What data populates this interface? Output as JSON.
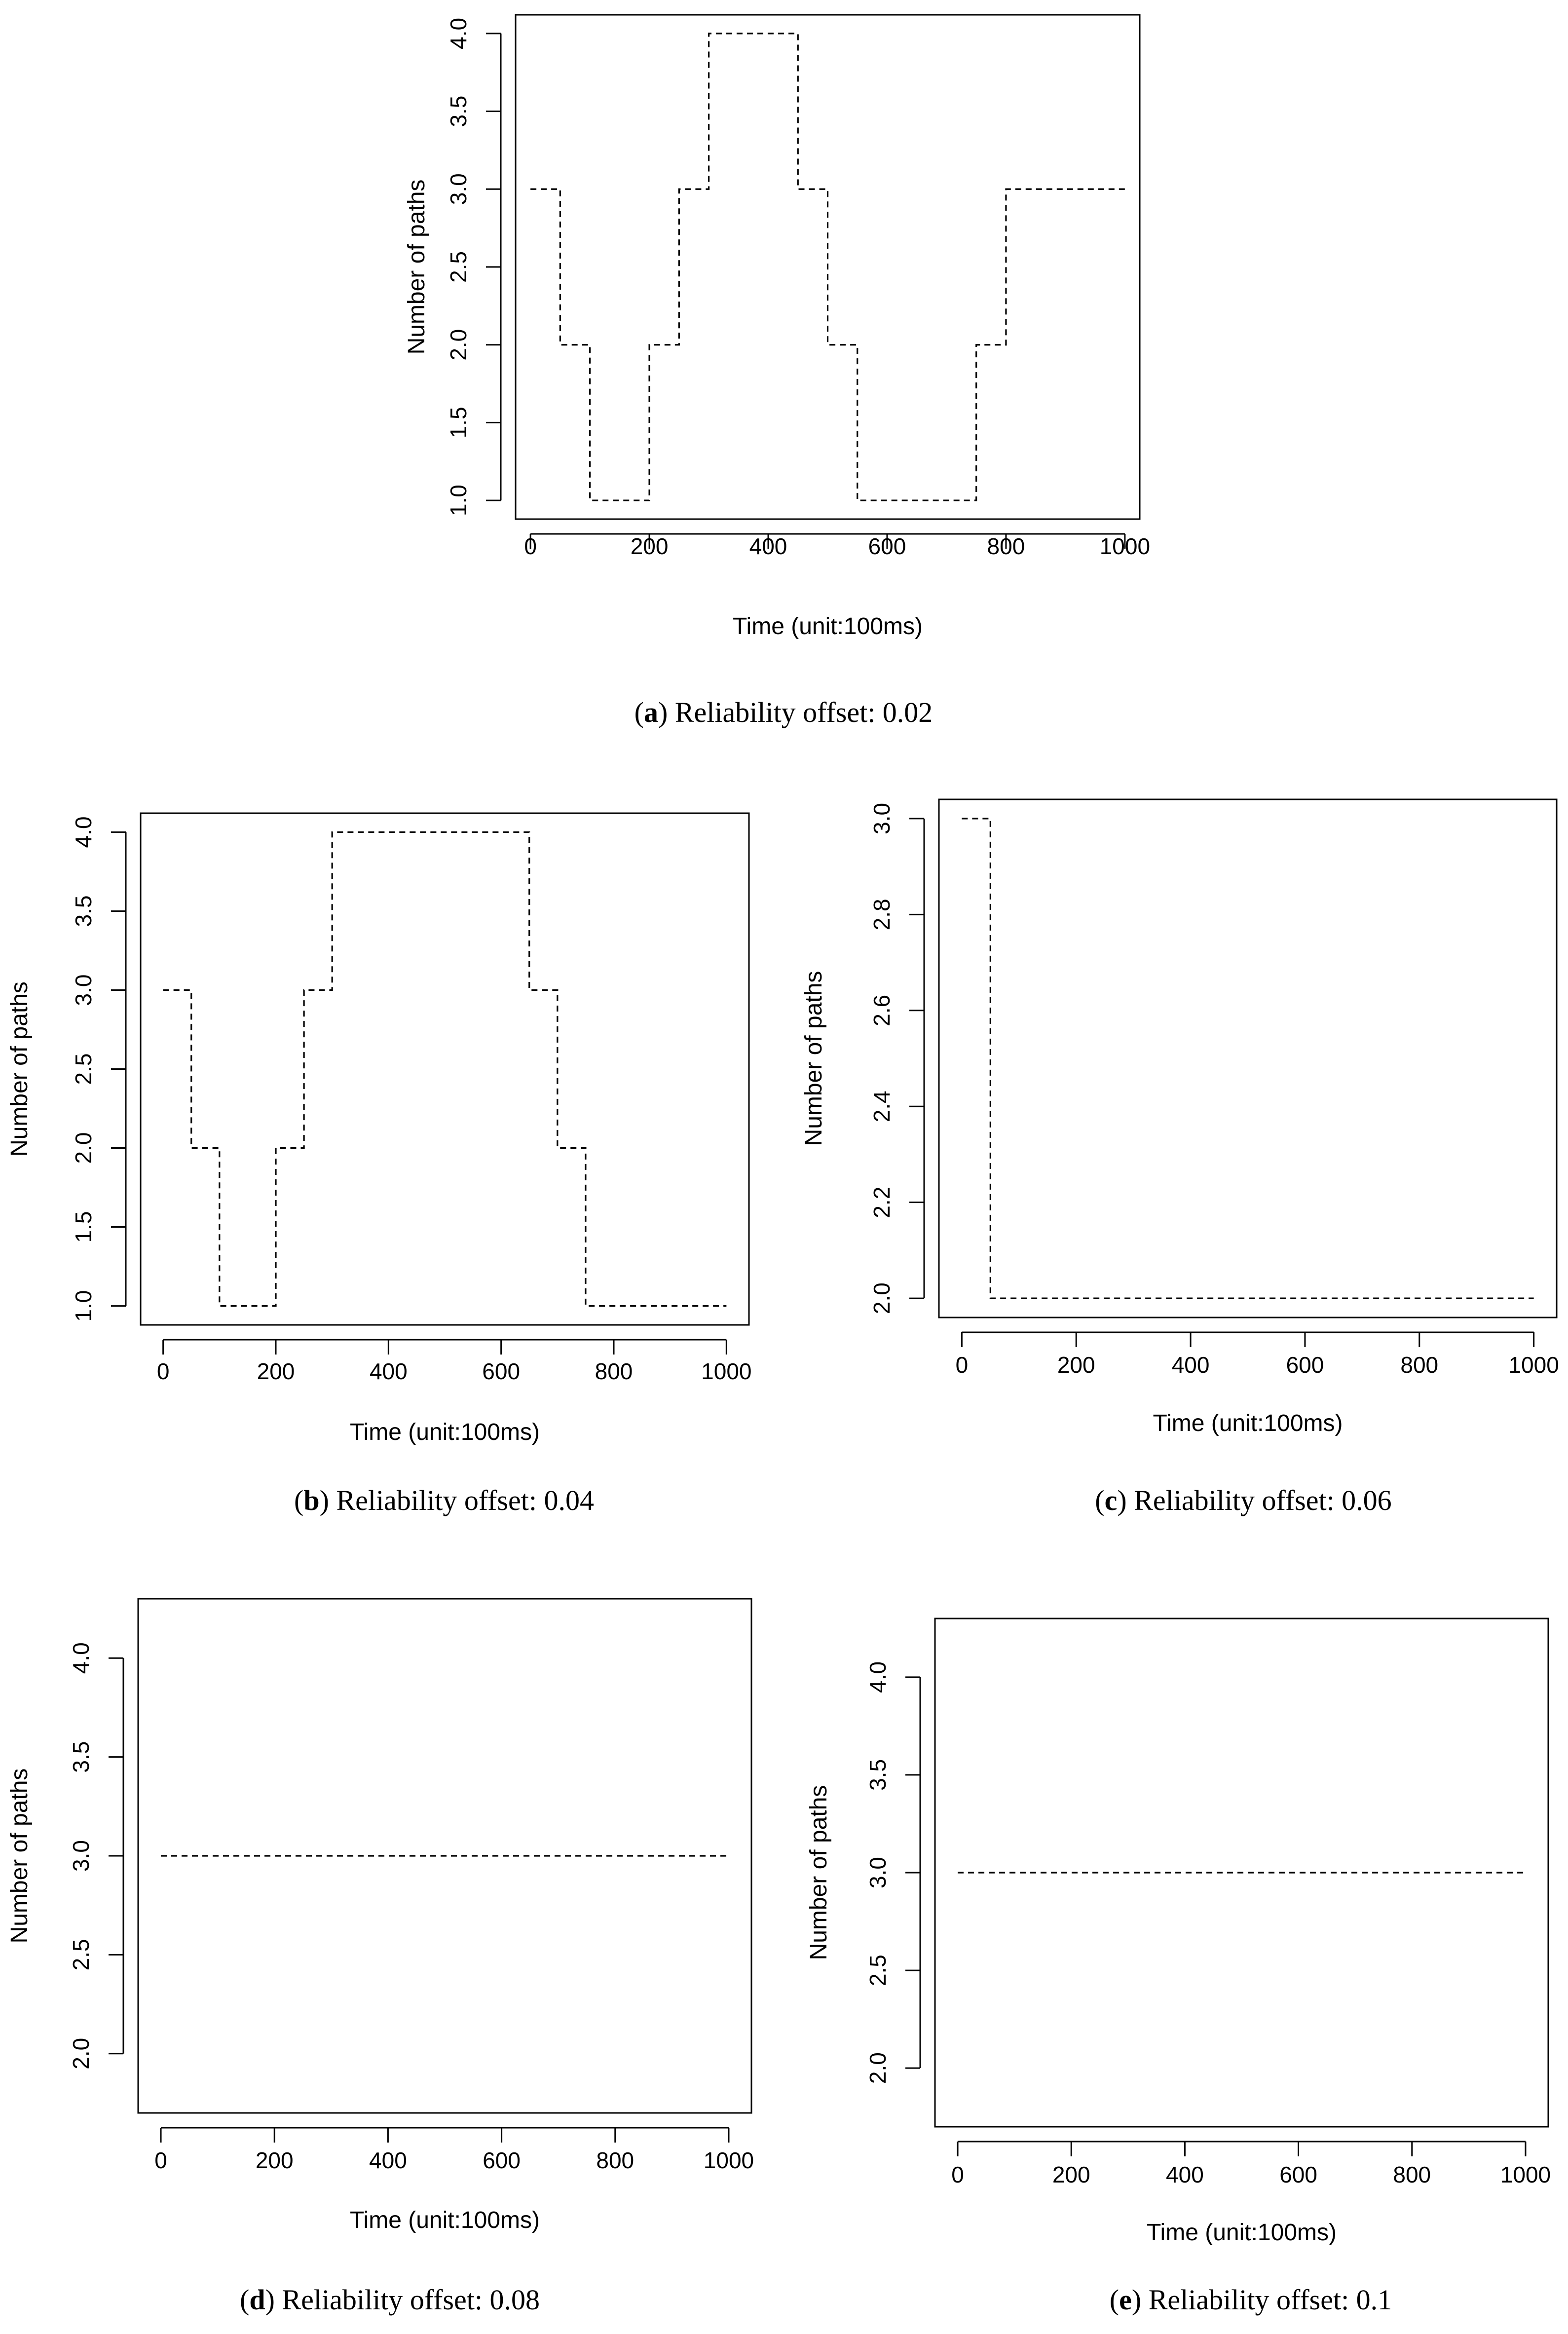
{
  "chart_data": [
    {
      "id": "a",
      "type": "line",
      "line_style": "dashed-step",
      "caption_letter": "a",
      "caption_text": "Reliability offset: 0.02",
      "xlabel": "Time (unit:100ms)",
      "ylabel": "Number of paths",
      "xlim": [
        -25,
        1025
      ],
      "ylim": [
        0.88,
        4.12
      ],
      "xticks": [
        0,
        200,
        400,
        600,
        800,
        1000
      ],
      "yticks": [
        "1.0",
        "1.5",
        "2.0",
        "2.5",
        "3.0",
        "3.5",
        "4.0"
      ],
      "x": [
        0,
        50,
        100,
        150,
        200,
        250,
        300,
        350,
        400,
        450,
        500,
        550,
        600,
        650,
        700,
        750,
        800,
        850,
        900,
        950,
        1000
      ],
      "y": [
        3,
        2,
        1,
        1,
        2,
        3,
        4,
        4,
        4,
        3,
        2,
        1,
        1,
        1,
        1,
        2,
        3,
        3,
        3,
        3,
        3
      ]
    },
    {
      "id": "b",
      "type": "line",
      "line_style": "dashed-step",
      "caption_letter": "b",
      "caption_text": "Reliability offset: 0.04",
      "xlabel": "Time (unit:100ms)",
      "ylabel": "Number of paths",
      "xlim": [
        -40,
        1040
      ],
      "ylim": [
        0.88,
        4.12
      ],
      "xticks": [
        0,
        200,
        400,
        600,
        800,
        1000
      ],
      "yticks": [
        "1.0",
        "1.5",
        "2.0",
        "2.5",
        "3.0",
        "3.5",
        "4.0"
      ],
      "x": [
        0,
        50,
        100,
        150,
        200,
        250,
        300,
        350,
        400,
        450,
        500,
        550,
        600,
        650,
        700,
        750,
        800,
        850,
        900,
        950,
        1000
      ],
      "y": [
        3,
        2,
        1,
        1,
        2,
        3,
        4,
        4,
        4,
        4,
        4,
        4,
        4,
        3,
        2,
        1,
        1,
        1,
        1,
        1,
        1
      ]
    },
    {
      "id": "c",
      "type": "line",
      "line_style": "dashed-step",
      "caption_letter": "c",
      "caption_text": "Reliability offset: 0.06",
      "xlabel": "Time (unit:100ms)",
      "ylabel": "Number of paths",
      "xlim": [
        -40,
        1040
      ],
      "ylim": [
        1.96,
        3.04
      ],
      "xticks": [
        0,
        200,
        400,
        600,
        800,
        1000
      ],
      "yticks": [
        "2.0",
        "2.2",
        "2.4",
        "2.6",
        "2.8",
        "3.0"
      ],
      "x": [
        0,
        50,
        100,
        1000
      ],
      "y": [
        3,
        2,
        2,
        2
      ]
    },
    {
      "id": "d",
      "type": "line",
      "line_style": "dashed",
      "caption_letter": "d",
      "caption_text": "Reliability offset: 0.08",
      "xlabel": "Time (unit:100ms)",
      "ylabel": "Number of paths",
      "xlim": [
        -40,
        1040
      ],
      "ylim": [
        1.7,
        4.3
      ],
      "xticks": [
        0,
        200,
        400,
        600,
        800,
        1000
      ],
      "yticks": [
        "2.0",
        "2.5",
        "3.0",
        "3.5",
        "4.0"
      ],
      "x": [
        0,
        1000
      ],
      "y": [
        3,
        3
      ]
    },
    {
      "id": "e",
      "type": "line",
      "line_style": "dashed",
      "caption_letter": "e",
      "caption_text": "Reliability offset: 0.1",
      "xlabel": "Time (unit:100ms)",
      "ylabel": "Number of paths",
      "xlim": [
        -40,
        1040
      ],
      "ylim": [
        1.7,
        4.3
      ],
      "xticks": [
        0,
        200,
        400,
        600,
        800,
        1000
      ],
      "yticks": [
        "2.0",
        "2.5",
        "3.0",
        "3.5",
        "4.0"
      ],
      "x": [
        0,
        1000
      ],
      "y": [
        3,
        3
      ]
    }
  ]
}
